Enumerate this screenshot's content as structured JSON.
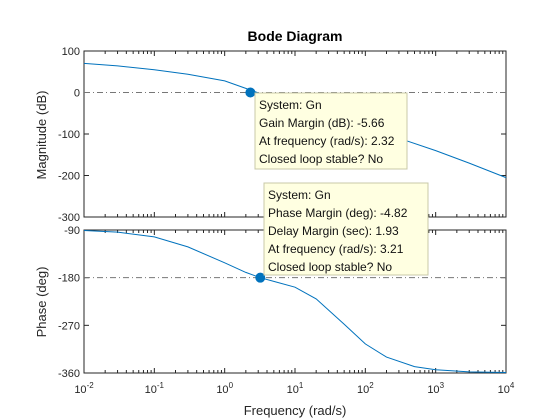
{
  "chart_data": {
    "type": "line",
    "title": "Bode Diagram",
    "xlabel": "Frequency  (rad/s)",
    "xscale": "log",
    "xlim": [
      0.01,
      10000
    ],
    "x_ticks": [
      0.01,
      0.1,
      1,
      10,
      100,
      1000,
      10000
    ],
    "x_tick_labels": [
      {
        "base": "10",
        "exp": "-2"
      },
      {
        "base": "10",
        "exp": "-1"
      },
      {
        "base": "10",
        "exp": "0"
      },
      {
        "base": "10",
        "exp": "1"
      },
      {
        "base": "10",
        "exp": "2"
      },
      {
        "base": "10",
        "exp": "3"
      },
      {
        "base": "10",
        "exp": "4"
      }
    ],
    "line_color": "#0072BD",
    "reference_line_color": "#777777",
    "magnitude": {
      "ylabel": "Magnitude (dB)",
      "ylim": [
        -300,
        100
      ],
      "y_ticks": [
        100,
        0,
        -100,
        -200,
        -300
      ],
      "y_tick_labels": [
        "100",
        "0",
        "-100",
        "-200",
        "-300"
      ],
      "reference_y": 0,
      "x": [
        0.01,
        0.03,
        0.1,
        0.3,
        1,
        2.32,
        5,
        10,
        30,
        100,
        300,
        1000,
        3000,
        10000
      ],
      "y": [
        70,
        64,
        55,
        44,
        28,
        6,
        -15,
        -37,
        -60,
        -85,
        -110,
        -140,
        -170,
        -205
      ]
    },
    "phase": {
      "ylabel": "Phase (deg)",
      "ylim": [
        -360,
        -90
      ],
      "y_ticks": [
        -90,
        -180,
        -270,
        -360
      ],
      "y_tick_labels": [
        "-90",
        "-180",
        "-270",
        "-360"
      ],
      "reference_y": -180,
      "x": [
        0.01,
        0.03,
        0.1,
        0.3,
        1,
        2,
        3.21,
        5,
        10,
        20,
        50,
        100,
        200,
        500,
        1000,
        3000,
        10000
      ],
      "y": [
        -91,
        -94,
        -103,
        -122,
        -152,
        -170,
        -180,
        -187,
        -198,
        -220,
        -268,
        -305,
        -330,
        -348,
        -354,
        -358,
        -359
      ]
    },
    "markers": [
      {
        "panel": "magnitude",
        "x": 2.32,
        "y": 0
      },
      {
        "panel": "phase",
        "x": 3.21,
        "y": -180
      }
    ],
    "annotations": [
      {
        "panel": "magnitude",
        "lines": [
          "System: Gn",
          "Gain Margin (dB): -5.66",
          "At frequency (rad/s): 2.32",
          "Closed loop stable? No"
        ]
      },
      {
        "panel": "phase",
        "lines": [
          "System: Gn",
          "Phase Margin (deg): -4.82",
          "Delay Margin (sec): 1.93",
          "At frequency (rad/s): 3.21",
          "Closed loop stable? No"
        ]
      }
    ]
  }
}
